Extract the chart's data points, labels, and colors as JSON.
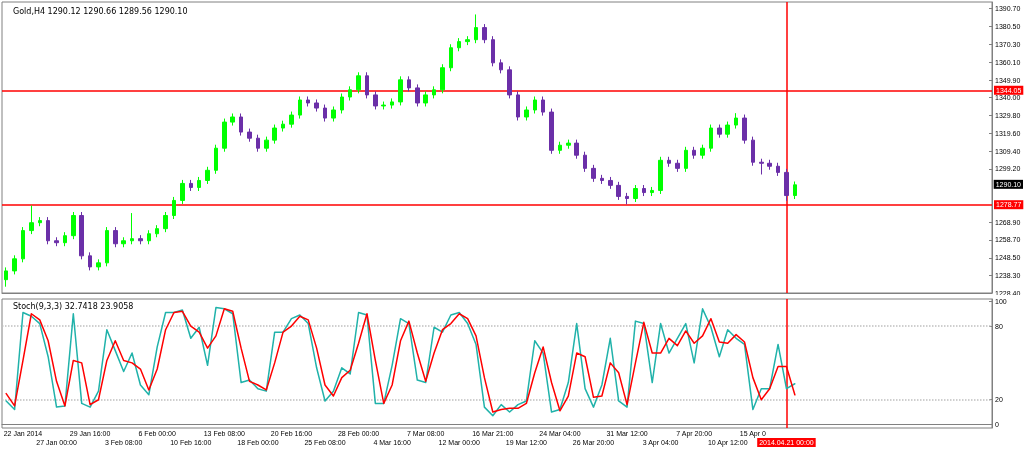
{
  "chart_data": [
    {
      "type": "candlestick",
      "title": "Gold,H4 1290.12 1290.66 1289.56 1290.10",
      "tick_labels": "y",
      "categories": [
        null,
        null,
        "22 Jan 2014",
        null,
        null,
        null,
        "27 Jan 00:00",
        null,
        null,
        null,
        "29 Jan 16:00",
        null,
        null,
        null,
        "3 Feb 08:00",
        null,
        null,
        null,
        "6 Feb 00:00",
        null,
        null,
        null,
        "10 Feb 16:00",
        null,
        null,
        null,
        "13 Feb 08:00",
        null,
        null,
        null,
        "18 Feb 00:00",
        null,
        null,
        null,
        "20 Feb 16:00",
        null,
        null,
        null,
        "25 Feb 08:00",
        null,
        null,
        null,
        "28 Feb 00:00",
        null,
        null,
        null,
        "4 Mar 16:00",
        null,
        null,
        null,
        "7 Mar 08:00",
        null,
        null,
        null,
        "12 Mar 00:00",
        null,
        null,
        null,
        "16 Mar 21:00",
        null,
        null,
        null,
        "19 Mar 12:00",
        null,
        null,
        null,
        "24 Mar 04:00",
        null,
        null,
        null,
        "26 Mar 20:00",
        null,
        null,
        null,
        "31 Mar 12:00",
        null,
        null,
        null,
        "3 Apr 04:00",
        null,
        null,
        null,
        "7 Apr 20:00",
        null,
        null,
        null,
        "10 Apr 12:00",
        null,
        null,
        "15 Apr 0",
        null,
        null,
        null,
        "2014.04.21 00:00",
        null,
        null,
        null,
        null,
        null,
        null,
        null,
        null,
        null,
        null,
        null,
        null,
        null,
        null,
        null,
        null,
        null,
        null,
        null,
        null,
        null,
        null,
        null,
        null
      ],
      "ohlc": [
        [
          1236.0,
          1243.0,
          1232.0,
          1241.0
        ],
        [
          1241.0,
          1249.9,
          1239.0,
          1247.9
        ],
        [
          1247.9,
          1266.0,
          1245.9,
          1264.0
        ],
        [
          1264.0,
          1278.3,
          1262.0,
          1268.5
        ],
        [
          1268.5,
          1271.7,
          1266.5,
          1269.7
        ],
        [
          1269.7,
          1271.7,
          1256.2,
          1258.2
        ],
        [
          1258.2,
          1260.2,
          1255.1,
          1257.1
        ],
        [
          1257.1,
          1263.1,
          1255.1,
          1261.1
        ],
        [
          1261.1,
          1274.6,
          1259.1,
          1272.6
        ],
        [
          1272.6,
          1274.6,
          1247.6,
          1249.6
        ],
        [
          1249.6,
          1251.6,
          1241.3,
          1243.3
        ],
        [
          1243.3,
          1247.6,
          1241.3,
          1245.6
        ],
        [
          1245.6,
          1266.0,
          1243.6,
          1264.0
        ],
        [
          1264.0,
          1266.0,
          1254.5,
          1256.5
        ],
        [
          1256.5,
          1260.2,
          1254.5,
          1258.2
        ],
        [
          1258.2,
          1274.0,
          1256.2,
          1259.4
        ],
        [
          1259.4,
          1261.4,
          1256.2,
          1258.2
        ],
        [
          1258.2,
          1264.2,
          1256.2,
          1262.2
        ],
        [
          1262.2,
          1267.1,
          1260.2,
          1265.1
        ],
        [
          1265.1,
          1274.6,
          1263.1,
          1272.6
        ],
        [
          1272.6,
          1283.2,
          1270.6,
          1281.2
        ],
        [
          1281.2,
          1292.9,
          1279.2,
          1290.9
        ],
        [
          1290.9,
          1292.9,
          1286.6,
          1288.6
        ],
        [
          1288.6,
          1294.6,
          1286.6,
          1292.6
        ],
        [
          1292.6,
          1300.4,
          1290.6,
          1298.4
        ],
        [
          1298.4,
          1313.0,
          1296.4,
          1311.0
        ],
        [
          1311.0,
          1327.9,
          1309.0,
          1325.9
        ],
        [
          1325.9,
          1330.8,
          1323.9,
          1328.8
        ],
        [
          1328.8,
          1330.8,
          1318.2,
          1320.2
        ],
        [
          1320.2,
          1322.2,
          1314.7,
          1316.7
        ],
        [
          1316.7,
          1318.7,
          1309.0,
          1311.0
        ],
        [
          1311.0,
          1317.6,
          1309.0,
          1315.6
        ],
        [
          1315.6,
          1324.5,
          1313.6,
          1322.5
        ],
        [
          1322.5,
          1326.7,
          1320.5,
          1324.7
        ],
        [
          1324.7,
          1331.9,
          1322.7,
          1329.9
        ],
        [
          1329.9,
          1340.5,
          1327.9,
          1338.5
        ],
        [
          1338.5,
          1340.5,
          1334.8,
          1336.8
        ],
        [
          1336.8,
          1338.8,
          1331.9,
          1333.9
        ],
        [
          1333.9,
          1335.9,
          1326.2,
          1328.2
        ],
        [
          1328.2,
          1334.8,
          1326.2,
          1332.8
        ],
        [
          1332.8,
          1342.2,
          1330.8,
          1340.2
        ],
        [
          1340.2,
          1346.3,
          1338.2,
          1344.3
        ],
        [
          1344.3,
          1354.3,
          1342.3,
          1352.3
        ],
        [
          1352.3,
          1354.3,
          1339.4,
          1341.4
        ],
        [
          1341.4,
          1343.4,
          1333.1,
          1335.1
        ],
        [
          1335.1,
          1337.6,
          1333.1,
          1335.6
        ],
        [
          1335.6,
          1339.4,
          1333.6,
          1337.4
        ],
        [
          1337.4,
          1352.0,
          1335.4,
          1350.0
        ],
        [
          1350.0,
          1352.0,
          1343.4,
          1345.4
        ],
        [
          1345.4,
          1347.4,
          1334.8,
          1336.8
        ],
        [
          1336.8,
          1343.4,
          1334.8,
          1341.4
        ],
        [
          1341.4,
          1346.3,
          1339.4,
          1344.3
        ],
        [
          1344.3,
          1358.9,
          1342.3,
          1356.9
        ],
        [
          1356.9,
          1370.3,
          1354.9,
          1368.3
        ],
        [
          1368.3,
          1373.8,
          1366.3,
          1371.8
        ],
        [
          1371.8,
          1374.9,
          1369.8,
          1372.9
        ],
        [
          1372.9,
          1387.3,
          1370.9,
          1379.8
        ],
        [
          1379.8,
          1381.8,
          1370.9,
          1372.9
        ],
        [
          1372.9,
          1374.9,
          1357.7,
          1359.7
        ],
        [
          1359.7,
          1361.7,
          1353.7,
          1355.7
        ],
        [
          1355.7,
          1357.7,
          1339.4,
          1341.4
        ],
        [
          1341.4,
          1343.4,
          1326.8,
          1328.8
        ],
        [
          1328.8,
          1334.8,
          1326.8,
          1332.8
        ],
        [
          1332.8,
          1340.5,
          1330.8,
          1338.5
        ],
        [
          1338.5,
          1340.5,
          1329.6,
          1331.6
        ],
        [
          1331.6,
          1333.6,
          1307.8,
          1309.8
        ],
        [
          1309.8,
          1314.7,
          1307.8,
          1312.7
        ],
        [
          1312.7,
          1315.9,
          1310.7,
          1313.9
        ],
        [
          1313.9,
          1315.9,
          1305.0,
          1307.0
        ],
        [
          1307.0,
          1309.0,
          1297.5,
          1299.5
        ],
        [
          1299.5,
          1301.5,
          1291.8,
          1293.8
        ],
        [
          1293.8,
          1295.8,
          1290.6,
          1292.6
        ],
        [
          1292.6,
          1294.6,
          1287.8,
          1289.8
        ],
        [
          1289.8,
          1291.8,
          1281.5,
          1283.5
        ],
        [
          1283.5,
          1285.5,
          1279.0,
          1282.3
        ],
        [
          1282.3,
          1290.0,
          1280.3,
          1288.0
        ],
        [
          1288.0,
          1290.0,
          1283.7,
          1285.7
        ],
        [
          1285.7,
          1288.9,
          1283.7,
          1286.9
        ],
        [
          1286.9,
          1306.1,
          1284.9,
          1304.1
        ],
        [
          1304.1,
          1306.1,
          1300.4,
          1302.4
        ],
        [
          1302.4,
          1304.4,
          1297.5,
          1299.5
        ],
        [
          1299.5,
          1311.8,
          1297.5,
          1309.8
        ],
        [
          1309.8,
          1311.8,
          1305.0,
          1307.0
        ],
        [
          1307.0,
          1313.0,
          1305.0,
          1311.0
        ],
        [
          1311.0,
          1324.5,
          1309.0,
          1322.5
        ],
        [
          1322.5,
          1324.5,
          1317.0,
          1319.0
        ],
        [
          1319.0,
          1326.2,
          1317.0,
          1324.2
        ],
        [
          1324.2,
          1331.0,
          1322.2,
          1328.2
        ],
        [
          1328.2,
          1330.2,
          1313.6,
          1315.6
        ],
        [
          1315.6,
          1317.6,
          1301.0,
          1303.0
        ],
        [
          1303.0,
          1305.0,
          1296.0,
          1302.4
        ],
        [
          1302.4,
          1304.4,
          1298.7,
          1300.7
        ],
        [
          1300.7,
          1302.7,
          1295.2,
          1297.2
        ],
        [
          1297.2,
          1299.2,
          1281.0,
          1284.0
        ],
        [
          1284.0,
          1292.0,
          1282.0,
          1290.1
        ],
        null,
        null,
        null,
        null,
        null,
        null,
        null,
        null,
        null,
        null,
        null,
        null,
        null,
        null,
        null,
        null,
        null,
        null,
        null,
        null,
        null,
        null,
        null
      ],
      "colors": [
        "#00ff00",
        "#00ff00",
        "#00ff00",
        "#00ff00",
        "#00ff00",
        "#6b2fa8",
        "#6b2fa8",
        "#00ff00",
        "#00ff00",
        "#6b2fa8",
        "#6b2fa8",
        "#00ff00",
        "#00ff00",
        "#6b2fa8",
        "#00ff00",
        "#00ff00",
        "#6b2fa8",
        "#00ff00",
        "#00ff00",
        "#00ff00",
        "#00ff00",
        "#00ff00",
        "#6b2fa8",
        "#00ff00",
        "#00ff00",
        "#00ff00",
        "#00ff00",
        "#00ff00",
        "#6b2fa8",
        "#6b2fa8",
        "#6b2fa8",
        "#00ff00",
        "#00ff00",
        "#00ff00",
        "#00ff00",
        "#00ff00",
        "#6b2fa8",
        "#6b2fa8",
        "#6b2fa8",
        "#00ff00",
        "#00ff00",
        "#00ff00",
        "#00ff00",
        "#6b2fa8",
        "#6b2fa8",
        "#00ff00",
        "#00ff00",
        "#00ff00",
        "#6b2fa8",
        "#6b2fa8",
        "#00ff00",
        "#00ff00",
        "#00ff00",
        "#00ff00",
        "#00ff00",
        "#00ff00",
        "#00ff00",
        "#6b2fa8",
        "#6b2fa8",
        "#6b2fa8",
        "#6b2fa8",
        "#6b2fa8",
        "#00ff00",
        "#00ff00",
        "#6b2fa8",
        "#6b2fa8",
        "#00ff00",
        "#00ff00",
        "#6b2fa8",
        "#6b2fa8",
        "#6b2fa8",
        "#6b2fa8",
        "#6b2fa8",
        "#6b2fa8",
        "#6b2fa8",
        "#00ff00",
        "#6b2fa8",
        "#00ff00",
        "#00ff00",
        "#6b2fa8",
        "#6b2fa8",
        "#00ff00",
        "#6b2fa8",
        "#00ff00",
        "#00ff00",
        "#6b2fa8",
        "#00ff00",
        "#00ff00",
        "#6b2fa8",
        "#6b2fa8",
        "#6b2fa8",
        "#6b2fa8",
        "#6b2fa8",
        "#6b2fa8",
        "#00ff00",
        null,
        null,
        null,
        null,
        null,
        null,
        null,
        null,
        null,
        null,
        null,
        null,
        null,
        null,
        null,
        null,
        null,
        null,
        null,
        null,
        null,
        null,
        null
      ],
      "ylim": [
        1228.4,
        1394.4
      ],
      "yticks": [
        {
          "value": 1390.7,
          "label": "1390.70"
        },
        {
          "value": 1380.5,
          "label": "1380.50"
        },
        {
          "value": 1370.3,
          "label": "1370.30"
        },
        {
          "value": 1360.1,
          "label": "1360.10"
        },
        {
          "value": 1349.9,
          "label": "1349.90"
        },
        {
          "value": 1340,
          "label": "1340.00"
        },
        {
          "value": 1329.8,
          "label": "1329.80"
        },
        {
          "value": 1319.6,
          "label": "1319.60"
        },
        {
          "value": 1309.4,
          "label": "1309.40"
        },
        {
          "value": 1299.2,
          "label": "1299.20"
        },
        {
          "value": 1268.9,
          "label": "1268.90"
        },
        {
          "value": 1258.7,
          "label": "1258.70"
        },
        {
          "value": 1248.5,
          "label": "1248.50"
        },
        {
          "value": 1238.3,
          "label": "1238.30"
        },
        {
          "value": 1228.4,
          "label": "1228.40"
        }
      ],
      "ref_lines": [
        {
          "axis": "y",
          "value": 1344.05,
          "label": "1344.05",
          "color": "#ff0000"
        },
        {
          "axis": "y",
          "value": 1278.77,
          "label": "1278.77",
          "color": "#ff0000"
        },
        {
          "axis": "x",
          "value": "2014.04.21 00:00",
          "color": "#ff0000"
        }
      ],
      "annotations": [
        "1290.10"
      ],
      "grid": false
    },
    {
      "type": "line",
      "title": "Stoch(9,3,3) 32.7418 23.9058",
      "marker": "none",
      "line_style": "solid",
      "categories": [
        null,
        null,
        "22 Jan 2014",
        null,
        null,
        null,
        "27 Jan 00:00",
        null,
        null,
        null,
        "29 Jan 16:00",
        null,
        null,
        null,
        "3 Feb 08:00",
        null,
        null,
        null,
        "6 Feb 00:00",
        null,
        null,
        null,
        "10 Feb 16:00",
        null,
        null,
        null,
        "13 Feb 08:00",
        null,
        null,
        null,
        "18 Feb 00:00",
        null,
        null,
        null,
        "20 Feb 16:00",
        null,
        null,
        null,
        "25 Feb 08:00",
        null,
        null,
        null,
        "28 Feb 00:00",
        null,
        null,
        null,
        "4 Mar 16:00",
        null,
        null,
        null,
        "7 Mar 08:00",
        null,
        null,
        null,
        "12 Mar 00:00",
        null,
        null,
        null,
        "16 Mar 21:00",
        null,
        null,
        null,
        "19 Mar 12:00",
        null,
        null,
        null,
        "24 Mar 04:00",
        null,
        null,
        null,
        "26 Mar 20:00",
        null,
        null,
        null,
        "31 Mar 12:00",
        null,
        null,
        null,
        "3 Apr 04:00",
        null,
        null,
        null,
        "7 Apr 20:00",
        null,
        null,
        null,
        "10 Apr 12:00",
        null,
        null,
        "15 Apr 0",
        null,
        null,
        null,
        "2014.04.21 00:00",
        null,
        null,
        null,
        null,
        null,
        null,
        null,
        null,
        null,
        null,
        null,
        null,
        null,
        null,
        null,
        null,
        null,
        null,
        null,
        null,
        null,
        null,
        null,
        null
      ],
      "series": [
        {
          "color": "#20b2aa",
          "values": [
            19,
            12,
            91,
            88,
            82,
            55,
            14,
            15,
            90,
            17,
            14,
            27,
            77,
            60,
            43,
            58,
            32,
            24,
            63,
            91,
            91,
            93,
            70,
            79,
            48,
            95,
            94,
            90,
            34,
            36,
            29,
            27,
            75,
            75,
            86,
            89,
            82,
            46,
            19,
            27,
            46,
            41,
            91,
            89,
            17,
            17,
            48,
            86,
            82,
            36,
            34,
            79,
            75,
            89,
            91,
            82,
            65,
            14,
            7,
            16,
            10,
            16,
            19,
            68,
            58,
            10,
            12,
            34,
            82,
            29,
            14,
            32,
            70,
            19,
            14,
            84,
            82,
            34,
            82,
            58,
            70,
            82,
            50,
            94,
            79,
            55,
            77,
            70,
            65,
            12,
            29,
            29,
            65,
            29,
            33,
            null,
            null,
            null,
            null,
            null,
            null,
            null,
            null,
            null,
            null,
            null,
            null,
            null,
            null,
            null,
            null,
            null,
            null,
            null,
            null,
            null,
            null,
            null
          ]
        },
        {
          "color": "#ff0000",
          "values": [
            25,
            15,
            52,
            90,
            85,
            68,
            35,
            15,
            52,
            50,
            16,
            20,
            52,
            68,
            52,
            50,
            45,
            28,
            45,
            77,
            91,
            92,
            80,
            75,
            62,
            72,
            94,
            92,
            62,
            35,
            32,
            28,
            50,
            75,
            80,
            88,
            85,
            62,
            32,
            23,
            38,
            44,
            66,
            90,
            52,
            17,
            32,
            68,
            84,
            58,
            35,
            58,
            77,
            82,
            90,
            86,
            72,
            38,
            10,
            12,
            13,
            13,
            17,
            42,
            63,
            34,
            11,
            23,
            58,
            55,
            22,
            23,
            50,
            42,
            16,
            50,
            83,
            58,
            58,
            70,
            64,
            76,
            66,
            72,
            86,
            67,
            66,
            73,
            67,
            38,
            20,
            29,
            47,
            47,
            24,
            null,
            null,
            null,
            null,
            null,
            null,
            null,
            null,
            null,
            null,
            null,
            null,
            null,
            null,
            null,
            null,
            null,
            null,
            null,
            null,
            null,
            null,
            null
          ]
        }
      ],
      "ylim": [
        -3,
        102
      ],
      "yticks": [
        0,
        20,
        80,
        100
      ],
      "ref_lines": [
        {
          "axis": "y",
          "value": 20,
          "color": "#c0c0c0",
          "line_style": "dotted"
        },
        {
          "axis": "y",
          "value": 80,
          "color": "#c0c0c0",
          "line_style": "dotted"
        },
        {
          "axis": "x",
          "value": "2014.04.21 00:00",
          "color": "#ff0000"
        }
      ],
      "grid": false
    }
  ]
}
